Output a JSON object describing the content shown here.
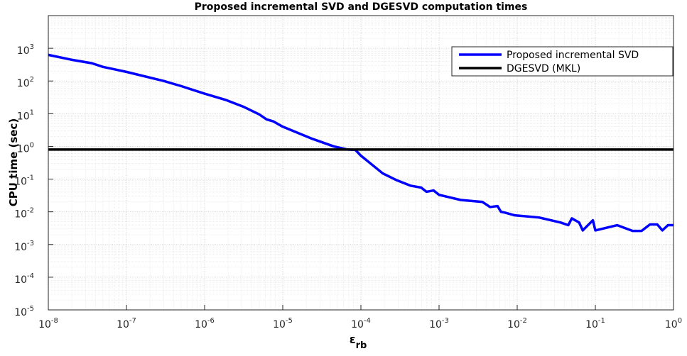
{
  "chart_data": {
    "type": "line",
    "title": "Proposed incremental SVD and DGESVD computation times",
    "xlabel": "ε",
    "xlabel_sub": "rb",
    "ylabel": "CPU time (sec)",
    "xscale": "log",
    "yscale": "log",
    "grid": true,
    "minor_grid": true,
    "legend": "northeast",
    "xlim": [
      1e-08,
      1
    ],
    "ylim": [
      1e-05,
      10000
    ],
    "xticks": [
      {
        "value": 1e-08,
        "label": "10",
        "exponent": "-8"
      },
      {
        "value": 1e-07,
        "label": "10",
        "exponent": "-7"
      },
      {
        "value": 1e-06,
        "label": "10",
        "exponent": "-6"
      },
      {
        "value": 1e-05,
        "label": "10",
        "exponent": "-5"
      },
      {
        "value": 0.0001,
        "label": "10",
        "exponent": "-4"
      },
      {
        "value": 0.001,
        "label": "10",
        "exponent": "-3"
      },
      {
        "value": 0.01,
        "label": "10",
        "exponent": "-2"
      },
      {
        "value": 0.1,
        "label": "10",
        "exponent": "-1"
      },
      {
        "value": 1,
        "label": "10",
        "exponent": "0"
      }
    ],
    "yticks": [
      {
        "value": 1e-05,
        "label": "10",
        "exponent": "-5"
      },
      {
        "value": 0.0001,
        "label": "10",
        "exponent": "-4"
      },
      {
        "value": 0.001,
        "label": "10",
        "exponent": "-3"
      },
      {
        "value": 0.01,
        "label": "10",
        "exponent": "-2"
      },
      {
        "value": 0.1,
        "label": "10",
        "exponent": "-1"
      },
      {
        "value": 1,
        "label": "10",
        "exponent": "0"
      },
      {
        "value": 10,
        "label": "10",
        "exponent": "1"
      },
      {
        "value": 100,
        "label": "10",
        "exponent": "2"
      },
      {
        "value": 1000,
        "label": "10",
        "exponent": "3"
      }
    ],
    "series": [
      {
        "name": "Proposed incremental SVD",
        "color": "#0000ff",
        "x": [
          1e-08,
          1.95e-08,
          3.6e-08,
          5e-08,
          6.9e-08,
          1e-07,
          3e-07,
          5e-07,
          1e-06,
          1.9e-06,
          3.2e-06,
          5e-06,
          6.2e-06,
          7.6e-06,
          1e-05,
          2.4e-05,
          4.5e-05,
          6.8e-05,
          8.5e-05,
          0.0001,
          0.00019,
          0.00028,
          0.00043,
          0.00059,
          0.00069,
          0.00085,
          0.001,
          0.0019,
          0.0036,
          0.0045,
          0.0056,
          0.0062,
          0.0069,
          0.0093,
          0.019,
          0.036,
          0.045,
          0.05,
          0.062,
          0.069,
          0.093,
          0.1,
          0.19,
          0.3,
          0.39,
          0.5,
          0.62,
          0.72,
          0.85,
          1
        ],
        "values": [
          630,
          450,
          350,
          270,
          230,
          190,
          100,
          70,
          41,
          26,
          16,
          9.5,
          6.7,
          5.8,
          4,
          1.7,
          1,
          0.8,
          0.78,
          0.52,
          0.15,
          0.095,
          0.063,
          0.055,
          0.041,
          0.045,
          0.033,
          0.023,
          0.02,
          0.014,
          0.015,
          0.01,
          0.0095,
          0.0078,
          0.0067,
          0.0047,
          0.0039,
          0.0063,
          0.0047,
          0.0027,
          0.0055,
          0.0027,
          0.0039,
          0.0026,
          0.0026,
          0.0041,
          0.0041,
          0.0027,
          0.0039,
          0.0039
        ]
      },
      {
        "name": "DGESVD (MKL)",
        "color": "#000000",
        "x": [
          1e-08,
          1
        ],
        "values": [
          0.8,
          0.8
        ]
      }
    ]
  }
}
